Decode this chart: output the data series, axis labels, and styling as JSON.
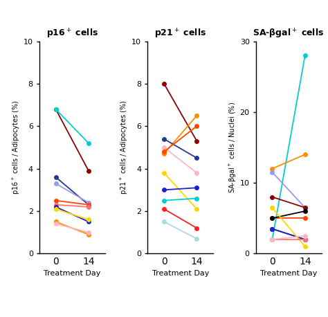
{
  "panel1_title": "p16$^+$ cells",
  "panel2_title": "p21$^+$ cells",
  "panel3_title": "SA-βgal$^+$ cells",
  "panel1_ylabel": "p16$^+$ cells / Adipocytes (%)",
  "panel2_ylabel": "p21$^+$ cells / Adipocytes (%)",
  "panel3_ylabel": "SA-βgal$^+$ cells / Nuclei (%)",
  "xlabel": "Treatment Day",
  "panel1_ylim": [
    0,
    10
  ],
  "panel2_ylim": [
    0,
    10
  ],
  "panel3_ylim": [
    0,
    30
  ],
  "panel1_yticks": [
    0,
    2,
    4,
    6,
    8,
    10
  ],
  "panel2_yticks": [
    0,
    2,
    4,
    6,
    8,
    10
  ],
  "panel3_yticks": [
    0,
    10,
    20,
    30
  ],
  "xticks": [
    0,
    14
  ],
  "panel1_data": [
    {
      "color": "#8B0000",
      "day0": 6.8,
      "day14": 3.9
    },
    {
      "color": "#00CED1",
      "day0": 6.8,
      "day14": 5.2
    },
    {
      "color": "#1F3A8F",
      "day0": 3.6,
      "day14": 2.3
    },
    {
      "color": "#9999EE",
      "day0": 3.3,
      "day14": 2.4
    },
    {
      "color": "#FF4500",
      "day0": 2.5,
      "day14": 2.3
    },
    {
      "color": "#FF7070",
      "day0": 2.3,
      "day14": 2.2
    },
    {
      "color": "#2020CC",
      "day0": 2.2,
      "day14": 1.5
    },
    {
      "color": "#FFD700",
      "day0": 2.1,
      "day14": 1.6
    },
    {
      "color": "#FF8C00",
      "day0": 1.5,
      "day14": 0.9
    },
    {
      "color": "#FFB6C1",
      "day0": 1.4,
      "day14": 1.0
    }
  ],
  "panel2_data": [
    {
      "color": "#8B0000",
      "day0": 8.0,
      "day14": 5.3
    },
    {
      "color": "#FF8C00",
      "day0": 4.7,
      "day14": 6.5
    },
    {
      "color": "#1F3A8F",
      "day0": 5.4,
      "day14": 4.5
    },
    {
      "color": "#FFB6C1",
      "day0": 5.0,
      "day14": 3.8
    },
    {
      "color": "#FF4500",
      "day0": 4.8,
      "day14": 6.0
    },
    {
      "color": "#FFD700",
      "day0": 3.8,
      "day14": 2.1
    },
    {
      "color": "#2020CC",
      "day0": 3.0,
      "day14": 3.1
    },
    {
      "color": "#00CED1",
      "day0": 2.5,
      "day14": 2.6
    },
    {
      "color": "#FF2020",
      "day0": 2.1,
      "day14": 1.2
    },
    {
      "color": "#ADD8E6",
      "day0": 1.5,
      "day14": 0.7
    }
  ],
  "panel3_data": [
    {
      "color": "#00CED1",
      "day0": 2.0,
      "day14": 28.0
    },
    {
      "color": "#FF8C00",
      "day0": 12.0,
      "day14": 14.0
    },
    {
      "color": "#9999EE",
      "day0": 11.5,
      "day14": 6.5
    },
    {
      "color": "#8B0000",
      "day0": 8.0,
      "day14": 6.5
    },
    {
      "color": "#FF4500",
      "day0": 5.0,
      "day14": 5.0
    },
    {
      "color": "#000000",
      "day0": 5.0,
      "day14": 6.0
    },
    {
      "color": "#1F3A8F",
      "day0": 3.5,
      "day14": 2.0
    },
    {
      "color": "#2020CC",
      "day0": 3.5,
      "day14": 2.0
    },
    {
      "color": "#FFD700",
      "day0": 6.5,
      "day14": 1.0
    },
    {
      "color": "#FF7070",
      "day0": 2.0,
      "day14": 2.0
    },
    {
      "color": "#FFB6C1",
      "day0": 2.0,
      "day14": 2.5
    }
  ],
  "bg_color": "#FFFFFF",
  "marker_size": 5,
  "line_width": 1.3
}
